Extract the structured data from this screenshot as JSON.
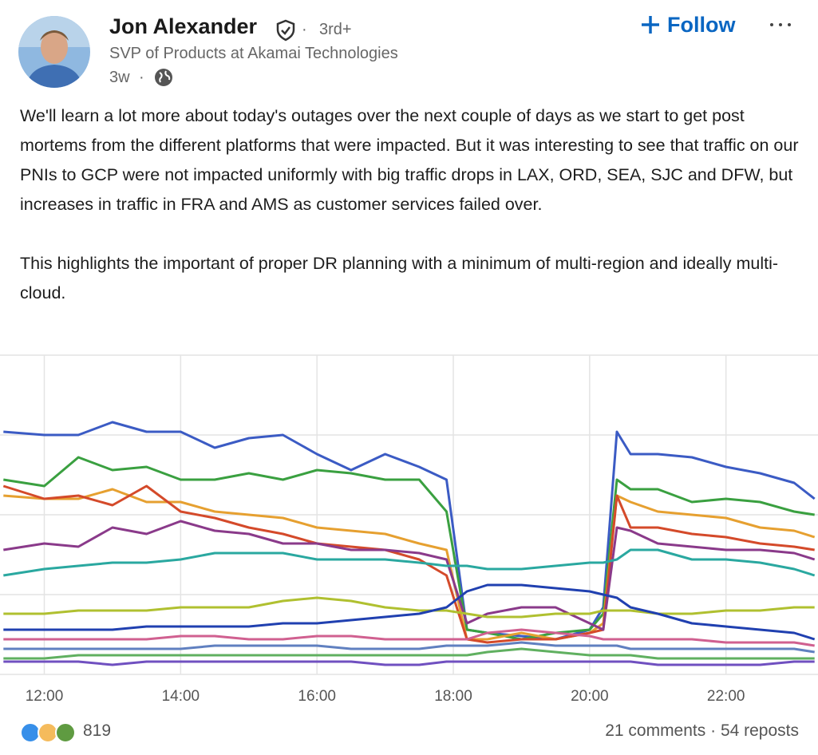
{
  "post": {
    "author": {
      "name": "Jon Alexander",
      "degree": "3rd+",
      "headline": "SVP of Products at Akamai Technologies",
      "time": "3w"
    },
    "follow": "Follow",
    "paragraphs": [
      "We'll learn a lot more about today's outages over the next couple of days as we start to get post mortems from the different platforms that were impacted. But it was interesting to see that traffic on our PNIs to GCP were not impacted uniformly with big traffic drops in LAX, ORD, SEA, SJC and DFW, but increases in traffic in FRA and AMS as customer services failed over.",
      "This highlights the important of proper DR planning with a minimum of multi-region and ideally multi-cloud."
    ],
    "reactions": "819",
    "comments": "21 comments",
    "reposts": "54 reposts"
  },
  "chart_data": {
    "type": "line",
    "grid": true,
    "x": [
      11.4,
      12,
      12.5,
      13,
      13.5,
      14,
      14.5,
      15,
      15.5,
      16,
      16.5,
      17,
      17.5,
      17.9,
      18.2,
      18.5,
      19,
      19.5,
      20,
      20.2,
      20.4,
      20.6,
      21,
      21.5,
      22,
      22.5,
      23,
      23.3
    ],
    "xlim": [
      11.35,
      23.35
    ],
    "xticks": [
      {
        "value": 12,
        "label": "12:00"
      },
      {
        "value": 14,
        "label": "14:00"
      },
      {
        "value": 16,
        "label": "16:00"
      },
      {
        "value": 18,
        "label": "18:00"
      },
      {
        "value": 20,
        "label": "20:00"
      },
      {
        "value": 22,
        "label": "22:00"
      }
    ],
    "ylim": [
      0,
      100
    ],
    "yticks": [
      25,
      50,
      75,
      100
    ],
    "series": [
      {
        "color": "#3b5bc4",
        "values": [
          76,
          75,
          75,
          79,
          76,
          76,
          71,
          74,
          75,
          69,
          64,
          69,
          65,
          61,
          14,
          13,
          12,
          11,
          14,
          21,
          76,
          69,
          69,
          68,
          65,
          63,
          60,
          55
        ]
      },
      {
        "color": "#3aa040",
        "values": [
          61,
          59,
          68,
          64,
          65,
          61,
          61,
          63,
          61,
          64,
          63,
          61,
          61,
          51,
          14,
          13,
          11,
          13,
          14,
          19,
          61,
          58,
          58,
          54,
          55,
          54,
          51,
          50
        ]
      },
      {
        "color": "#e6a030",
        "values": [
          56,
          55,
          55,
          58,
          54,
          54,
          51,
          50,
          49,
          46,
          45,
          44,
          41,
          39,
          11,
          11,
          13,
          11,
          13,
          16,
          56,
          54,
          51,
          50,
          49,
          46,
          45,
          43
        ]
      },
      {
        "color": "#d44a2a",
        "values": [
          59,
          55,
          56,
          53,
          59,
          51,
          49,
          46,
          44,
          41,
          40,
          39,
          36,
          31,
          11,
          10,
          11,
          11,
          13,
          14,
          56,
          46,
          46,
          44,
          43,
          41,
          40,
          39
        ]
      },
      {
        "color": "#8a3a8a",
        "values": [
          39,
          41,
          40,
          46,
          44,
          48,
          45,
          44,
          41,
          41,
          39,
          39,
          38,
          36,
          16,
          19,
          21,
          21,
          16,
          14,
          46,
          45,
          41,
          40,
          39,
          39,
          38,
          36
        ]
      },
      {
        "color": "#2aa8a0",
        "values": [
          31,
          33,
          34,
          35,
          35,
          36,
          38,
          38,
          38,
          36,
          36,
          36,
          35,
          34,
          34,
          33,
          33,
          34,
          35,
          35,
          36,
          39,
          39,
          36,
          36,
          35,
          33,
          31
        ]
      },
      {
        "color": "#b0c030",
        "values": [
          19,
          19,
          20,
          20,
          20,
          21,
          21,
          21,
          23,
          24,
          23,
          21,
          20,
          20,
          19,
          18,
          18,
          19,
          19,
          20,
          20,
          20,
          19,
          19,
          20,
          20,
          21,
          21
        ]
      },
      {
        "color": "#2040b0",
        "values": [
          14,
          14,
          14,
          14,
          15,
          15,
          15,
          15,
          16,
          16,
          17,
          18,
          19,
          21,
          26,
          28,
          28,
          27,
          26,
          25,
          24,
          21,
          19,
          16,
          15,
          14,
          13,
          11
        ]
      },
      {
        "color": "#d06090",
        "values": [
          11,
          11,
          11,
          11,
          11,
          12,
          12,
          11,
          11,
          12,
          12,
          11,
          11,
          11,
          11,
          13,
          14,
          13,
          12,
          11,
          11,
          11,
          11,
          11,
          10,
          10,
          10,
          9
        ]
      },
      {
        "color": "#6080c0",
        "values": [
          8,
          8,
          8,
          8,
          8,
          8,
          9,
          9,
          9,
          9,
          8,
          8,
          8,
          9,
          9,
          9,
          10,
          9,
          9,
          9,
          9,
          8,
          8,
          8,
          8,
          8,
          8,
          7
        ]
      },
      {
        "color": "#60b060",
        "values": [
          5,
          5,
          6,
          6,
          6,
          6,
          6,
          6,
          6,
          6,
          6,
          6,
          6,
          6,
          6,
          7,
          8,
          7,
          6,
          6,
          6,
          6,
          5,
          5,
          5,
          5,
          5,
          5
        ]
      },
      {
        "color": "#7050c0",
        "values": [
          4,
          4,
          4,
          3,
          4,
          4,
          4,
          4,
          4,
          4,
          4,
          3,
          3,
          4,
          4,
          4,
          4,
          4,
          4,
          4,
          4,
          4,
          3,
          3,
          3,
          3,
          4,
          4
        ]
      }
    ]
  }
}
